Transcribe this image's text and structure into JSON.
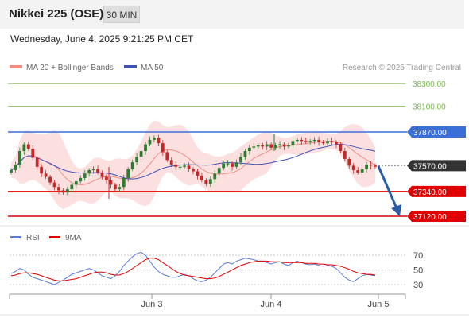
{
  "header": {
    "title": "Nikkei 225 (OSE)",
    "timeframe": "30 MIN"
  },
  "date_text": "Wednesday, June 4, 2025 9:21:25 PM CET",
  "legend": {
    "ma20": "MA 20 + Bollinger Bands",
    "ma50": "MA 50"
  },
  "credit": "Research © 2025 Trading Central",
  "colors": {
    "up": "#2e7d32",
    "down": "#c62828",
    "ma20": "#f28b82",
    "ma50": "#3f51b5",
    "band_fill": "#fbd6d6",
    "resistance": "#3a6fd8",
    "support": "#e00000",
    "target": "#79b94b",
    "arrow": "#2a5ca8",
    "current": "#333333",
    "rsi": "#5b7bd5",
    "rsi_ma": "#e00000"
  },
  "chart_data": {
    "type": "candlestick",
    "x_ticks": [
      "Jun 3",
      "Jun 4",
      "Jun 5"
    ],
    "y_range": [
      37000,
      38400
    ],
    "price_levels": [
      {
        "value": 38300,
        "label": "38300.00",
        "kind": "target"
      },
      {
        "value": 38100,
        "label": "38100.00",
        "kind": "target"
      },
      {
        "value": 37870,
        "label": "37870.00",
        "kind": "resistance"
      },
      {
        "value": 37570,
        "label": "37570.00",
        "kind": "current"
      },
      {
        "value": 37340,
        "label": "37340.00",
        "kind": "support"
      },
      {
        "value": 37120,
        "label": "37120.00",
        "kind": "support"
      }
    ],
    "price_path": [
      37530,
      37580,
      37700,
      37760,
      37720,
      37640,
      37560,
      37500,
      37470,
      37420,
      37380,
      37350,
      37330,
      37360,
      37400,
      37430,
      37460,
      37500,
      37530,
      37540,
      37510,
      37470,
      37440,
      37400,
      37360,
      37380,
      37460,
      37540,
      37600,
      37650,
      37700,
      37760,
      37800,
      37820,
      37770,
      37690,
      37620,
      37580,
      37560,
      37560,
      37570,
      37540,
      37520,
      37480,
      37440,
      37410,
      37450,
      37500,
      37550,
      37590,
      37590,
      37560,
      37600,
      37650,
      37700,
      37730,
      37740,
      37750,
      37740,
      37760,
      37730,
      37750,
      37760,
      37740,
      37750,
      37790,
      37800,
      37790,
      37780,
      37790,
      37800,
      37780,
      37770,
      37790,
      37780,
      37760,
      37700,
      37630,
      37570,
      37530,
      37510,
      37540,
      37580,
      37570,
      37560
    ],
    "rsi": {
      "label": "RSI",
      "ma_label": "9MA",
      "levels": [
        70,
        50,
        30
      ],
      "range": [
        20,
        80
      ],
      "values": [
        45,
        48,
        52,
        50,
        44,
        40,
        38,
        36,
        34,
        32,
        30,
        33,
        36,
        40,
        44,
        46,
        48,
        50,
        52,
        50,
        46,
        42,
        40,
        38,
        42,
        48,
        56,
        62,
        68,
        72,
        74,
        70,
        62,
        54,
        48,
        44,
        42,
        40,
        40,
        42,
        44,
        42,
        38,
        35,
        34,
        36,
        40,
        46,
        52,
        58,
        60,
        58,
        62,
        64,
        66,
        65,
        64,
        62,
        62,
        60,
        58,
        60,
        61,
        58,
        56,
        60,
        62,
        60,
        58,
        57,
        58,
        56,
        55,
        56,
        55,
        52,
        46,
        40,
        36,
        34,
        38,
        42,
        44,
        43,
        42
      ],
      "ma_values": [
        42,
        43,
        45,
        46,
        46,
        45,
        44,
        42,
        40,
        38,
        36,
        35,
        35,
        36,
        37,
        38,
        40,
        42,
        44,
        46,
        47,
        47,
        46,
        44,
        43,
        43,
        45,
        48,
        52,
        56,
        60,
        64,
        66,
        66,
        64,
        60,
        56,
        52,
        48,
        45,
        43,
        42,
        41,
        40,
        39,
        38,
        38,
        39,
        41,
        44,
        47,
        50,
        53,
        56,
        58,
        60,
        61,
        62,
        62,
        62,
        61,
        61,
        61,
        60,
        60,
        60,
        60,
        60,
        59,
        59,
        59,
        58,
        58,
        57,
        57,
        56,
        55,
        53,
        51,
        48,
        46,
        45,
        44,
        44,
        43
      ]
    }
  }
}
